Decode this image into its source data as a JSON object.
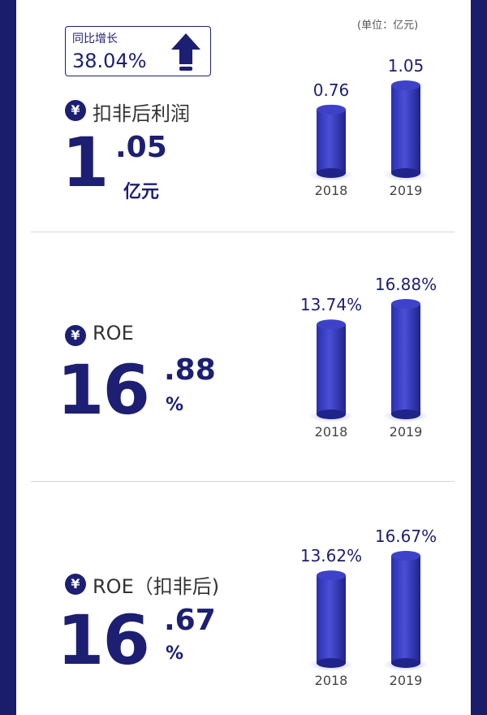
{
  "unit_note": "(单位：亿元)",
  "growth": {
    "label": "同比增长",
    "value": "38.04%"
  },
  "metrics": [
    {
      "title": "扣非后利润",
      "int": "1",
      "dec": ".05",
      "unit": "亿元"
    },
    {
      "title": "ROE",
      "int": "16",
      "dec": ".88",
      "unit": "%"
    },
    {
      "title": "ROE（扣非后)",
      "int": "16",
      "dec": ".67",
      "unit": "%"
    }
  ],
  "yen_symbol": "¥",
  "chart_data": [
    {
      "type": "bar",
      "categories": [
        "2018",
        "2019"
      ],
      "values": [
        0.76,
        1.05
      ],
      "value_labels": [
        "0.76",
        "1.05"
      ],
      "title": "",
      "xlabel": "",
      "ylabel": ""
    },
    {
      "type": "bar",
      "categories": [
        "2018",
        "2019"
      ],
      "values": [
        13.74,
        16.88
      ],
      "value_labels": [
        "13.74%",
        "16.88%"
      ],
      "title": "",
      "xlabel": "",
      "ylabel": ""
    },
    {
      "type": "bar",
      "categories": [
        "2018",
        "2019"
      ],
      "values": [
        13.62,
        16.67
      ],
      "value_labels": [
        "13.62%",
        "16.67%"
      ],
      "title": "",
      "xlabel": "",
      "ylabel": ""
    }
  ],
  "colors": {
    "navy": "#1c1f72",
    "bar_light": "#5a5fe0",
    "bar_dark": "#22279a"
  }
}
